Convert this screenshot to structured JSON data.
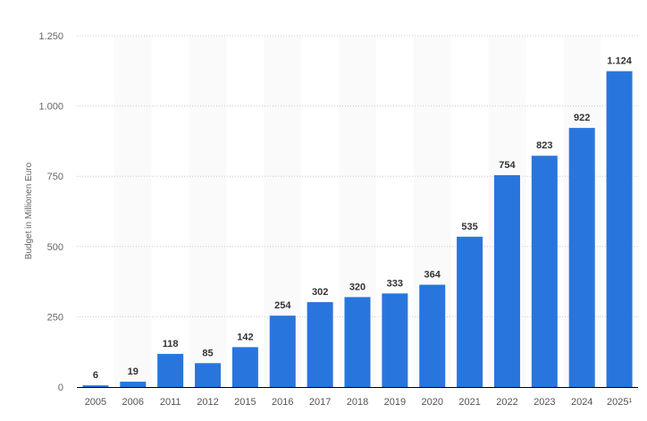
{
  "chart_data": {
    "type": "bar",
    "title": "",
    "xlabel": "",
    "ylabel": "Budget in Millionen Euro",
    "ylim": [
      0,
      1250
    ],
    "yticks": [
      0,
      250,
      500,
      750,
      1000,
      1250
    ],
    "ytick_labels": [
      "0",
      "250",
      "500",
      "750",
      "1.000",
      "1.250"
    ],
    "grid": true,
    "categories": [
      "2005",
      "2006",
      "2011",
      "2012",
      "2015",
      "2016",
      "2017",
      "2018",
      "2019",
      "2020",
      "2021",
      "2022",
      "2023",
      "2024",
      "2025¹"
    ],
    "values": [
      6,
      19,
      118,
      85,
      142,
      254,
      302,
      320,
      333,
      364,
      535,
      754,
      823,
      922,
      1124
    ],
    "value_labels": [
      "6",
      "19",
      "118",
      "85",
      "142",
      "254",
      "302",
      "320",
      "333",
      "364",
      "535",
      "754",
      "823",
      "922",
      "1.124"
    ],
    "colors": {
      "bar": "#2876dd",
      "band": "#fafafa",
      "grid": "#cccccc",
      "axis": "#000000"
    }
  }
}
